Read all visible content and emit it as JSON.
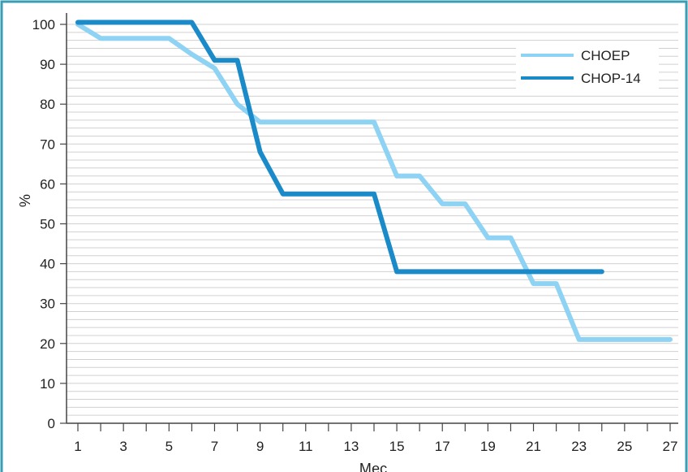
{
  "chart_data": {
    "type": "line",
    "title": "",
    "xlabel": "Мес",
    "ylabel": "%",
    "xlim": [
      1,
      27
    ],
    "ylim": [
      0,
      100
    ],
    "x_ticks": [
      1,
      3,
      5,
      7,
      9,
      11,
      13,
      15,
      17,
      19,
      21,
      23,
      25,
      27
    ],
    "y_ticks": [
      0,
      10,
      20,
      30,
      40,
      50,
      60,
      70,
      80,
      90,
      100
    ],
    "grid": "horizontal",
    "legend_position": "top-right",
    "series": [
      {
        "name": "CHOEP",
        "color": "#8fd3f4",
        "points": [
          [
            1,
            100
          ],
          [
            2,
            96.5
          ],
          [
            5,
            96.5
          ],
          [
            6,
            92.5
          ],
          [
            7,
            89
          ],
          [
            8,
            80
          ],
          [
            9,
            75.5
          ],
          [
            14,
            75.5
          ],
          [
            15,
            62
          ],
          [
            16,
            62
          ],
          [
            17,
            55
          ],
          [
            18,
            55
          ],
          [
            19,
            46.5
          ],
          [
            20,
            46.5
          ],
          [
            21,
            35
          ],
          [
            22,
            35
          ],
          [
            23,
            21
          ],
          [
            27,
            21
          ]
        ]
      },
      {
        "name": "CHOP-14",
        "color": "#1a8ac8",
        "points": [
          [
            1,
            100.5
          ],
          [
            6,
            100.5
          ],
          [
            7,
            91
          ],
          [
            8,
            91
          ],
          [
            9,
            68
          ],
          [
            10,
            57.5
          ],
          [
            14,
            57.5
          ],
          [
            15,
            38
          ],
          [
            24,
            38
          ]
        ]
      }
    ]
  }
}
